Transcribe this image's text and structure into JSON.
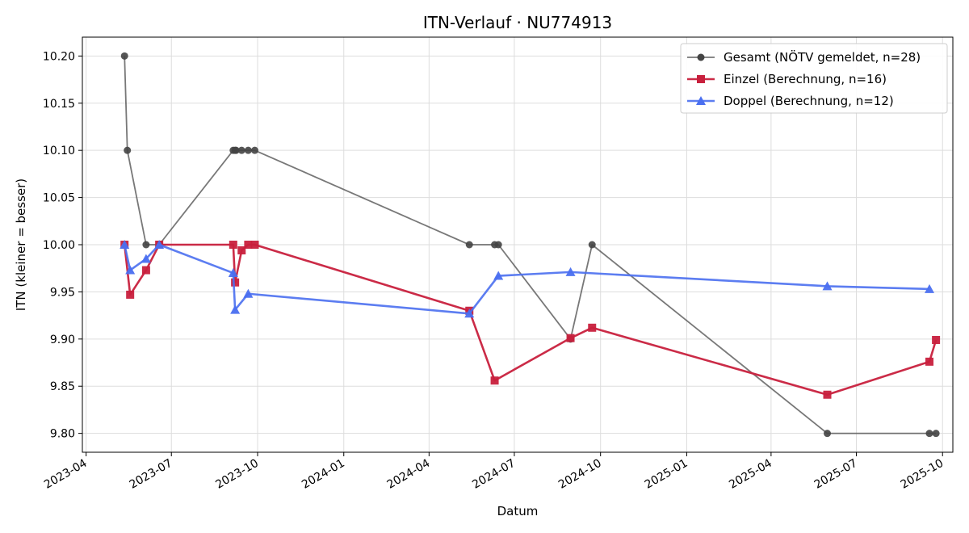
{
  "chart_data": {
    "type": "line",
    "title": "ITN-Verlauf · NU774913",
    "xlabel": "Datum",
    "ylabel": "ITN  (kleiner = besser)",
    "x_is_date": true,
    "xlim": [
      "2023-03-28",
      "2025-10-12"
    ],
    "ylim": [
      9.78,
      10.22
    ],
    "y_ticks": [
      9.8,
      9.85,
      9.9,
      9.95,
      10.0,
      10.05,
      10.1,
      10.15,
      10.2
    ],
    "y_tick_labels": [
      "9.80",
      "9.85",
      "9.90",
      "9.95",
      "10.00",
      "10.05",
      "10.10",
      "10.15",
      "10.20"
    ],
    "x_ticks": [
      "2023-04-01",
      "2023-07-01",
      "2023-10-01",
      "2024-01-01",
      "2024-04-01",
      "2024-07-01",
      "2024-10-01",
      "2025-01-01",
      "2025-04-01",
      "2025-07-01",
      "2025-10-01"
    ],
    "x_tick_labels": [
      "2023-04",
      "2023-07",
      "2023-10",
      "2024-01",
      "2024-04",
      "2024-07",
      "2024-10",
      "2025-01",
      "2025-04",
      "2025-07",
      "2025-10"
    ],
    "grid": true,
    "legend_position": "top-right",
    "series": [
      {
        "name": "Gesamt (NÖTV gemeldet, n=28)",
        "color": "#444444",
        "marker": "circle",
        "points": [
          [
            "2023-05-12",
            10.2
          ],
          [
            "2023-05-15",
            10.1
          ],
          [
            "2023-06-04",
            10.0
          ],
          [
            "2023-06-18",
            10.0
          ],
          [
            "2023-09-05",
            10.1
          ],
          [
            "2023-09-07",
            10.1
          ],
          [
            "2023-09-08",
            10.1
          ],
          [
            "2023-09-14",
            10.1
          ],
          [
            "2023-09-21",
            10.1
          ],
          [
            "2023-09-28",
            10.1
          ],
          [
            "2024-05-14",
            10.0
          ],
          [
            "2024-06-10",
            10.0
          ],
          [
            "2024-06-14",
            10.0
          ],
          [
            "2024-08-30",
            9.9
          ],
          [
            "2024-09-22",
            10.0
          ],
          [
            "2025-05-31",
            9.8
          ],
          [
            "2025-09-17",
            9.8
          ],
          [
            "2025-09-24",
            9.8
          ]
        ]
      },
      {
        "name": "Einzel (Berechnung, n=16)",
        "color": "#c8203d",
        "marker": "square",
        "points": [
          [
            "2023-05-12",
            10.0
          ],
          [
            "2023-05-18",
            9.947
          ],
          [
            "2023-06-04",
            9.973
          ],
          [
            "2023-06-18",
            10.0
          ],
          [
            "2023-09-05",
            10.0
          ],
          [
            "2023-09-07",
            9.96
          ],
          [
            "2023-09-14",
            9.994
          ],
          [
            "2023-09-21",
            10.0
          ],
          [
            "2023-09-28",
            10.0
          ],
          [
            "2024-05-14",
            9.93
          ],
          [
            "2024-06-10",
            9.856
          ],
          [
            "2024-08-30",
            9.901
          ],
          [
            "2024-09-22",
            9.912
          ],
          [
            "2025-05-31",
            9.841
          ],
          [
            "2025-09-17",
            9.876
          ],
          [
            "2025-09-24",
            9.899
          ]
        ]
      },
      {
        "name": "Doppel (Berechnung, n=12)",
        "color": "#4a6ff0",
        "marker": "triangle",
        "points": [
          [
            "2023-05-12",
            10.0
          ],
          [
            "2023-05-18",
            9.973
          ],
          [
            "2023-06-04",
            9.985
          ],
          [
            "2023-06-18",
            10.0
          ],
          [
            "2023-09-05",
            9.97
          ],
          [
            "2023-09-07",
            9.931
          ],
          [
            "2023-09-21",
            9.948
          ],
          [
            "2024-05-14",
            9.927
          ],
          [
            "2024-06-14",
            9.967
          ],
          [
            "2024-08-30",
            9.971
          ],
          [
            "2025-05-31",
            9.956
          ],
          [
            "2025-09-17",
            9.953
          ]
        ]
      }
    ]
  }
}
